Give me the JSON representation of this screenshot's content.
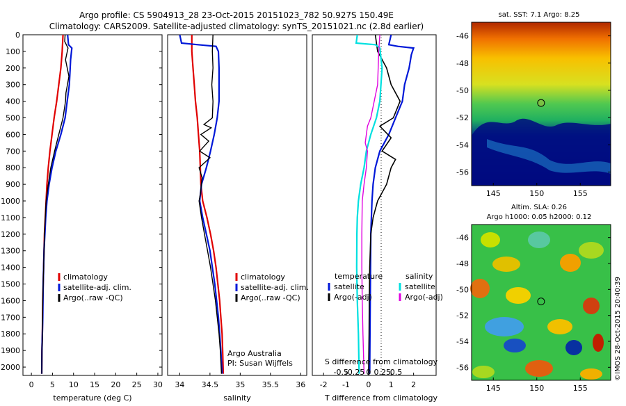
{
  "header": {
    "title_line1": "Argo profile: CS 5904913_28 23-Oct-2015 20151023_782 50.927S 150.49E",
    "title_line2": "Climatology: CARS2009. Satellite-adjusted climatology: synTS_20151021.nc (2.8d earlier)"
  },
  "colors": {
    "climatology": "#e00000",
    "satellite": "#0018d8",
    "argo": "#000000",
    "salinity_sat": "#00e0e0",
    "salinity_argo": "#e000e0"
  },
  "chart_data": [
    {
      "type": "line",
      "xlabel": "temperature (deg C)",
      "xlim": [
        -2,
        31
      ],
      "ylim": [
        2050,
        0
      ],
      "x_ticks": [
        "0",
        "5",
        "10",
        "15",
        "20",
        "25",
        "30"
      ],
      "y_ticks": [
        "0",
        "100",
        "200",
        "300",
        "400",
        "500",
        "600",
        "700",
        "800",
        "900",
        "1000",
        "1100",
        "1200",
        "1300",
        "1400",
        "1500",
        "1600",
        "1700",
        "1800",
        "1900",
        "2000"
      ],
      "legend": [
        "climatology",
        "satellite-adj. clim.",
        "Argo(..raw -QC)"
      ],
      "series": [
        {
          "name": "climatology",
          "points": [
            [
              7.5,
              0
            ],
            [
              7.3,
              100
            ],
            [
              7.0,
              200
            ],
            [
              6.5,
              300
            ],
            [
              6.0,
              400
            ],
            [
              5.4,
              500
            ],
            [
              4.9,
              600
            ],
            [
              4.4,
              700
            ],
            [
              4.0,
              800
            ],
            [
              3.7,
              900
            ],
            [
              3.5,
              1000
            ],
            [
              3.3,
              1100
            ],
            [
              3.1,
              1200
            ],
            [
              3.0,
              1300
            ],
            [
              2.9,
              1400
            ],
            [
              2.8,
              1500
            ],
            [
              2.7,
              1600
            ],
            [
              2.65,
              1700
            ],
            [
              2.6,
              1800
            ],
            [
              2.5,
              1900
            ],
            [
              2.45,
              2040
            ]
          ]
        },
        {
          "name": "satellite-adj. clim.",
          "points": [
            [
              8.6,
              0
            ],
            [
              8.8,
              60
            ],
            [
              9.6,
              80
            ],
            [
              9.3,
              150
            ],
            [
              9.0,
              300
            ],
            [
              8.5,
              400
            ],
            [
              8.0,
              500
            ],
            [
              7.0,
              600
            ],
            [
              5.8,
              700
            ],
            [
              4.9,
              800
            ],
            [
              4.2,
              900
            ],
            [
              3.7,
              1000
            ],
            [
              3.4,
              1100
            ],
            [
              3.2,
              1200
            ],
            [
              3.0,
              1300
            ],
            [
              2.9,
              1400
            ],
            [
              2.8,
              1500
            ],
            [
              2.75,
              1600
            ],
            [
              2.7,
              1700
            ],
            [
              2.6,
              1800
            ],
            [
              2.5,
              1900
            ],
            [
              2.45,
              2040
            ]
          ]
        },
        {
          "name": "Argo(..raw -QC)",
          "points": [
            [
              8.0,
              0
            ],
            [
              7.9,
              40
            ],
            [
              8.7,
              80
            ],
            [
              8.1,
              150
            ],
            [
              8.9,
              250
            ],
            [
              8.2,
              350
            ],
            [
              8.1,
              400
            ],
            [
              7.5,
              500
            ],
            [
              6.5,
              600
            ],
            [
              5.5,
              700
            ],
            [
              4.6,
              800
            ],
            [
              4.0,
              900
            ],
            [
              3.5,
              1000
            ],
            [
              3.3,
              1100
            ],
            [
              3.1,
              1200
            ],
            [
              3.0,
              1300
            ],
            [
              2.9,
              1400
            ],
            [
              2.8,
              1500
            ],
            [
              2.7,
              1600
            ],
            [
              2.65,
              1700
            ],
            [
              2.6,
              1800
            ],
            [
              2.5,
              1900
            ],
            [
              2.45,
              2040
            ]
          ]
        }
      ]
    },
    {
      "type": "line",
      "xlabel": "salinity",
      "xlim": [
        33.8,
        36.1
      ],
      "ylim": [
        2050,
        0
      ],
      "x_ticks": [
        "34",
        "34.5",
        "35",
        "35.5",
        "36"
      ],
      "legend": [
        "climatology",
        "satellite-adj. clim.",
        "Argo(..raw -QC)"
      ],
      "annotation": [
        "Argo Australia",
        "PI: Susan Wijffels"
      ],
      "series": [
        {
          "name": "climatology",
          "points": [
            [
              34.2,
              0
            ],
            [
              34.2,
              100
            ],
            [
              34.22,
              200
            ],
            [
              34.24,
              300
            ],
            [
              34.26,
              400
            ],
            [
              34.29,
              500
            ],
            [
              34.31,
              600
            ],
            [
              34.33,
              700
            ],
            [
              34.34,
              800
            ],
            [
              34.35,
              900
            ],
            [
              34.38,
              1000
            ],
            [
              34.45,
              1100
            ],
            [
              34.51,
              1200
            ],
            [
              34.56,
              1300
            ],
            [
              34.6,
              1400
            ],
            [
              34.63,
              1500
            ],
            [
              34.66,
              1600
            ],
            [
              34.68,
              1700
            ],
            [
              34.7,
              1800
            ],
            [
              34.71,
              1900
            ],
            [
              34.72,
              2040
            ]
          ]
        },
        {
          "name": "satellite-adj. clim.",
          "points": [
            [
              34.0,
              0
            ],
            [
              34.03,
              50
            ],
            [
              34.3,
              60
            ],
            [
              34.6,
              70
            ],
            [
              34.64,
              100
            ],
            [
              34.65,
              200
            ],
            [
              34.65,
              400
            ],
            [
              34.62,
              500
            ],
            [
              34.57,
              600
            ],
            [
              34.51,
              700
            ],
            [
              34.44,
              800
            ],
            [
              34.36,
              900
            ],
            [
              34.33,
              1000
            ],
            [
              34.38,
              1100
            ],
            [
              34.44,
              1200
            ],
            [
              34.5,
              1300
            ],
            [
              34.54,
              1400
            ],
            [
              34.58,
              1500
            ],
            [
              34.61,
              1600
            ],
            [
              34.64,
              1700
            ],
            [
              34.66,
              1800
            ],
            [
              34.68,
              1900
            ],
            [
              34.7,
              2040
            ]
          ]
        },
        {
          "name": "Argo(..raw -QC)",
          "points": [
            [
              34.55,
              0
            ],
            [
              34.54,
              100
            ],
            [
              34.55,
              200
            ],
            [
              34.53,
              300
            ],
            [
              34.55,
              400
            ],
            [
              34.54,
              500
            ],
            [
              34.4,
              540
            ],
            [
              34.52,
              560
            ],
            [
              34.35,
              600
            ],
            [
              34.48,
              640
            ],
            [
              34.33,
              700
            ],
            [
              34.5,
              740
            ],
            [
              34.32,
              800
            ],
            [
              34.37,
              860
            ],
            [
              34.34,
              960
            ],
            [
              34.32,
              1000
            ],
            [
              34.36,
              1100
            ],
            [
              34.41,
              1200
            ],
            [
              34.46,
              1300
            ],
            [
              34.51,
              1400
            ],
            [
              34.55,
              1500
            ],
            [
              34.59,
              1600
            ],
            [
              34.62,
              1700
            ],
            [
              34.65,
              1800
            ],
            [
              34.67,
              1900
            ],
            [
              34.69,
              2040
            ]
          ]
        }
      ]
    },
    {
      "type": "line",
      "xlabel": "T difference from climatology",
      "xlabel_top": "S difference from climatology",
      "xlim": [
        -2.5,
        3.0
      ],
      "ylim": [
        2050,
        0
      ],
      "x_ticks": [
        "-2",
        "-1",
        "0",
        "1",
        "2"
      ],
      "x_ticks_top": [
        "-0.5",
        "-0.25",
        "0",
        "0.25",
        "0.5"
      ],
      "legend_titles": [
        "temperature",
        "salinity"
      ],
      "legend": [
        "satellite",
        "Argo(-adj)",
        "satellite",
        "Argo(-adj)"
      ],
      "series": [
        {
          "name": "satellite",
          "points": [
            [
              1.0,
              0
            ],
            [
              0.9,
              60
            ],
            [
              1.3,
              70
            ],
            [
              2.0,
              80
            ],
            [
              1.9,
              120
            ],
            [
              1.8,
              200
            ],
            [
              1.6,
              300
            ],
            [
              1.5,
              400
            ],
            [
              1.2,
              500
            ],
            [
              0.9,
              600
            ],
            [
              0.5,
              700
            ],
            [
              0.3,
              800
            ],
            [
              0.2,
              900
            ],
            [
              0.15,
              1000
            ],
            [
              0.1,
              1200
            ],
            [
              0.08,
              1500
            ],
            [
              0.06,
              1800
            ],
            [
              0.05,
              2040
            ]
          ]
        },
        {
          "name": "Argo(-adj)",
          "points": [
            [
              0.3,
              0
            ],
            [
              0.4,
              100
            ],
            [
              0.8,
              200
            ],
            [
              1.0,
              300
            ],
            [
              1.4,
              400
            ],
            [
              1.1,
              500
            ],
            [
              0.5,
              550
            ],
            [
              1.0,
              620
            ],
            [
              0.6,
              700
            ],
            [
              1.2,
              750
            ],
            [
              1.0,
              800
            ],
            [
              0.8,
              900
            ],
            [
              0.4,
              1000
            ],
            [
              0.2,
              1100
            ],
            [
              0.1,
              1200
            ],
            [
              0.05,
              1400
            ],
            [
              0.03,
              1600
            ],
            [
              0.02,
              1800
            ],
            [
              0.0,
              2040
            ]
          ]
        },
        {
          "name": "satellite",
          "points": [
            [
              -0.5,
              0
            ],
            [
              -0.55,
              50
            ],
            [
              0.3,
              60
            ],
            [
              0.5,
              80
            ],
            [
              0.6,
              200
            ],
            [
              0.5,
              400
            ],
            [
              0.35,
              500
            ],
            [
              0.1,
              600
            ],
            [
              -0.1,
              700
            ],
            [
              -0.2,
              800
            ],
            [
              -0.35,
              900
            ],
            [
              -0.45,
              1000
            ],
            [
              -0.5,
              1100
            ],
            [
              -0.52,
              1200
            ],
            [
              -0.53,
              1400
            ],
            [
              -0.5,
              1600
            ],
            [
              -0.45,
              1800
            ],
            [
              -0.42,
              2040
            ]
          ]
        },
        {
          "name": "Argo(-adj)",
          "points": [
            [
              0.5,
              0
            ],
            [
              0.45,
              100
            ],
            [
              0.4,
              300
            ],
            [
              0.25,
              400
            ],
            [
              0.1,
              500
            ],
            [
              -0.05,
              550
            ],
            [
              -0.1,
              600
            ],
            [
              -0.15,
              650
            ],
            [
              -0.05,
              700
            ],
            [
              -0.1,
              800
            ],
            [
              -0.2,
              900
            ],
            [
              -0.28,
              1000
            ],
            [
              -0.3,
              1200
            ],
            [
              -0.3,
              1400
            ],
            [
              -0.28,
              1600
            ],
            [
              -0.25,
              1800
            ],
            [
              -0.2,
              2040
            ]
          ]
        }
      ]
    },
    {
      "type": "heatmap",
      "title": "sat. SST: 7.1  Argo: 8.25",
      "x_ticks": [
        "145",
        "150",
        "155"
      ],
      "y_ticks": [
        "-46",
        "-48",
        "-50",
        "-52",
        "-54",
        "-56"
      ],
      "xlim": [
        142.5,
        158.5
      ],
      "ylim": [
        -57,
        -45
      ],
      "marker": [
        150.49,
        -50.927
      ]
    },
    {
      "type": "heatmap",
      "title": "Altim. SLA: 0.26",
      "subtitle": "Argo h1000: 0.05 h2000: 0.12",
      "x_ticks": [
        "145",
        "150",
        "155"
      ],
      "y_ticks": [
        "-46",
        "-48",
        "-50",
        "-52",
        "-54",
        "-56"
      ],
      "xlim": [
        142.5,
        158.5
      ],
      "ylim": [
        -57,
        -45
      ],
      "marker": [
        150.49,
        -50.927
      ]
    }
  ],
  "footer": {
    "stamp": "©IMOS 28-Oct-2015 20:40:39"
  }
}
